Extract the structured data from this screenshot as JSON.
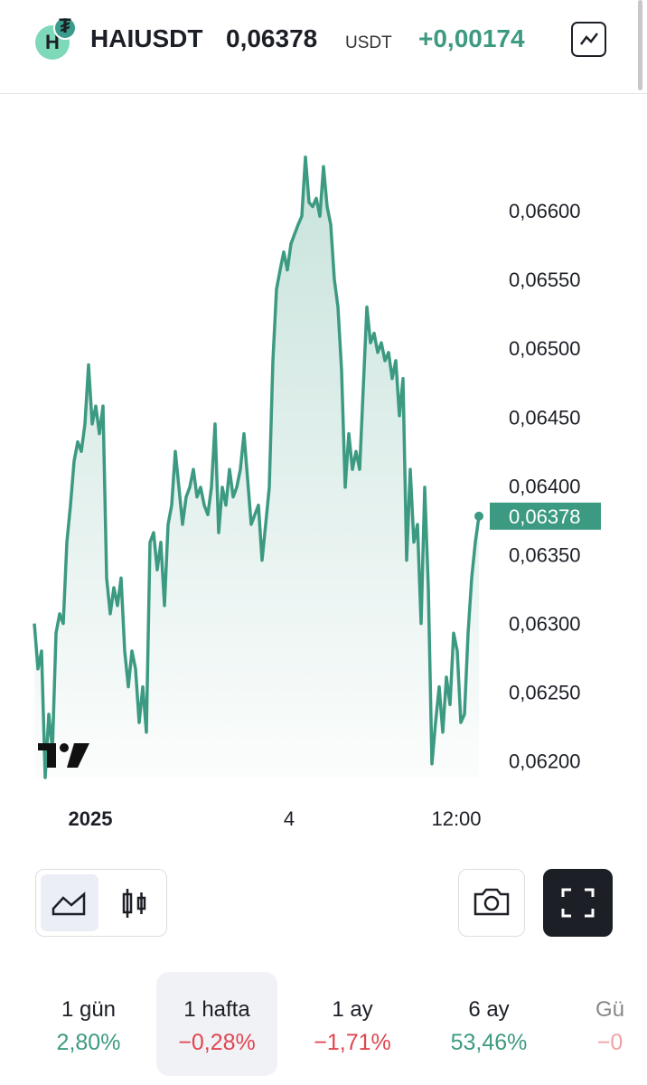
{
  "header": {
    "symbol": "HAIUSDT",
    "price": "0,06378",
    "unit": "USDT",
    "change": "+0,00174"
  },
  "chart_data": {
    "type": "line",
    "values": [
      0.063,
      0.06267,
      0.0628,
      0.06188,
      0.06234,
      0.06208,
      0.06293,
      0.06307,
      0.063,
      0.06359,
      0.06386,
      0.06418,
      0.06432,
      0.06425,
      0.06445,
      0.06488,
      0.06445,
      0.06458,
      0.06438,
      0.06458,
      0.06333,
      0.06307,
      0.06326,
      0.06313,
      0.06333,
      0.0628,
      0.06254,
      0.0628,
      0.06267,
      0.06228,
      0.06254,
      0.06221,
      0.06359,
      0.06366,
      0.06339,
      0.06359,
      0.06313,
      0.06372,
      0.06386,
      0.06425,
      0.06399,
      0.06372,
      0.06392,
      0.06399,
      0.06412,
      0.06392,
      0.06399,
      0.06386,
      0.06379,
      0.06399,
      0.06445,
      0.06366,
      0.06399,
      0.06386,
      0.06412,
      0.06392,
      0.06399,
      0.06412,
      0.06438,
      0.06405,
      0.06372,
      0.06379,
      0.06386,
      0.06346,
      0.06372,
      0.06399,
      0.06491,
      0.06543,
      0.06557,
      0.0657,
      0.06557,
      0.06576,
      0.06583,
      0.0659,
      0.06596,
      0.06639,
      0.06606,
      0.06603,
      0.06609,
      0.06596,
      0.06632,
      0.06603,
      0.0659,
      0.0655,
      0.0653,
      0.06484,
      0.06399,
      0.06438,
      0.06412,
      0.06425,
      0.06412,
      0.06471,
      0.0653,
      0.06504,
      0.06511,
      0.06497,
      0.06504,
      0.06491,
      0.06497,
      0.06478,
      0.06491,
      0.06451,
      0.06478,
      0.06346,
      0.06412,
      0.06359,
      0.06372,
      0.063,
      0.06399,
      0.06326,
      0.06198,
      0.06228,
      0.06254,
      0.06221,
      0.06261,
      0.06241,
      0.06293,
      0.0628,
      0.06228,
      0.06234,
      0.06293,
      0.06333,
      0.06359,
      0.06378
    ],
    "color": "#3d9a82",
    "xlim": [
      0,
      123
    ],
    "xticks": [
      {
        "value": 15.5,
        "label": "2025"
      },
      {
        "value": 70.5,
        "label": "4"
      },
      {
        "value": 116.75,
        "label": "12:00"
      }
    ],
    "ylim": [
      0.06188,
      0.06648
    ],
    "yticks": [
      {
        "value": 0.062,
        "label": "0,06200"
      },
      {
        "value": 0.0625,
        "label": "0,06250"
      },
      {
        "value": 0.063,
        "label": "0,06300"
      },
      {
        "value": 0.0635,
        "label": "0,06350"
      },
      {
        "value": 0.064,
        "label": "0,06400"
      },
      {
        "value": 0.0645,
        "label": "0,06450"
      },
      {
        "value": 0.065,
        "label": "0,06500"
      },
      {
        "value": 0.0655,
        "label": "0,06550"
      },
      {
        "value": 0.066,
        "label": "0,06600"
      }
    ],
    "current_value": {
      "value": 0.06378,
      "label": "0,06378"
    }
  },
  "periods": [
    {
      "label": "1 gün",
      "change": "2,80%"
    },
    {
      "label": "1 hafta",
      "change": "−0,28%"
    },
    {
      "label": "1 ay",
      "change": "−1,71%"
    },
    {
      "label": "6 ay",
      "change": "53,46%"
    },
    {
      "label": "Gü",
      "change": "−0"
    }
  ]
}
